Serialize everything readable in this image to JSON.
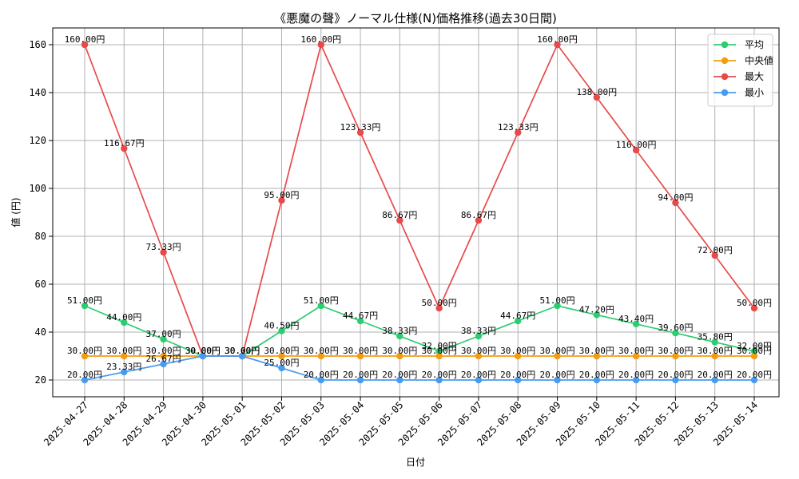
{
  "chart_data": {
    "type": "line",
    "title": "《悪魔の聲》ノーマル仕様(N)価格推移(過去30日間)",
    "xlabel": "日付",
    "ylabel": "値 (円)",
    "ylim": [
      13,
      167
    ],
    "yticks": [
      20,
      40,
      60,
      80,
      100,
      120,
      140,
      160
    ],
    "grid": true,
    "legend_position": "top-right",
    "value_suffix": "円",
    "categories": [
      "2025-04-27",
      "2025-04-28",
      "2025-04-29",
      "2025-04-30",
      "2025-05-01",
      "2025-05-02",
      "2025-05-03",
      "2025-05-04",
      "2025-05-05",
      "2025-05-06",
      "2025-05-07",
      "2025-05-08",
      "2025-05-09",
      "2025-05-10",
      "2025-05-11",
      "2025-05-12",
      "2025-05-13",
      "2025-05-14"
    ],
    "series": [
      {
        "name": "平均",
        "color": "#2ecc71",
        "values": [
          51.0,
          44.0,
          37.0,
          30.0,
          30.0,
          40.5,
          51.0,
          44.67,
          38.33,
          32.0,
          38.33,
          44.67,
          51.0,
          47.2,
          43.4,
          39.6,
          35.8,
          32.0
        ]
      },
      {
        "name": "中央値",
        "color": "#f39c12",
        "values": [
          30.0,
          30.0,
          30.0,
          30.0,
          30.0,
          30.0,
          30.0,
          30.0,
          30.0,
          30.0,
          30.0,
          30.0,
          30.0,
          30.0,
          30.0,
          30.0,
          30.0,
          30.0
        ]
      },
      {
        "name": "最大",
        "color": "#e84a4a",
        "values": [
          160.0,
          116.67,
          73.33,
          30.0,
          30.0,
          95.0,
          160.0,
          123.33,
          86.67,
          50.0,
          86.67,
          123.33,
          160.0,
          138.0,
          116.0,
          94.0,
          72.0,
          50.0
        ]
      },
      {
        "name": "最小",
        "color": "#4a9bef",
        "values": [
          20.0,
          23.33,
          26.67,
          30.0,
          30.0,
          25.0,
          20.0,
          20.0,
          20.0,
          20.0,
          20.0,
          20.0,
          20.0,
          20.0,
          20.0,
          20.0,
          20.0,
          20.0
        ]
      }
    ]
  }
}
